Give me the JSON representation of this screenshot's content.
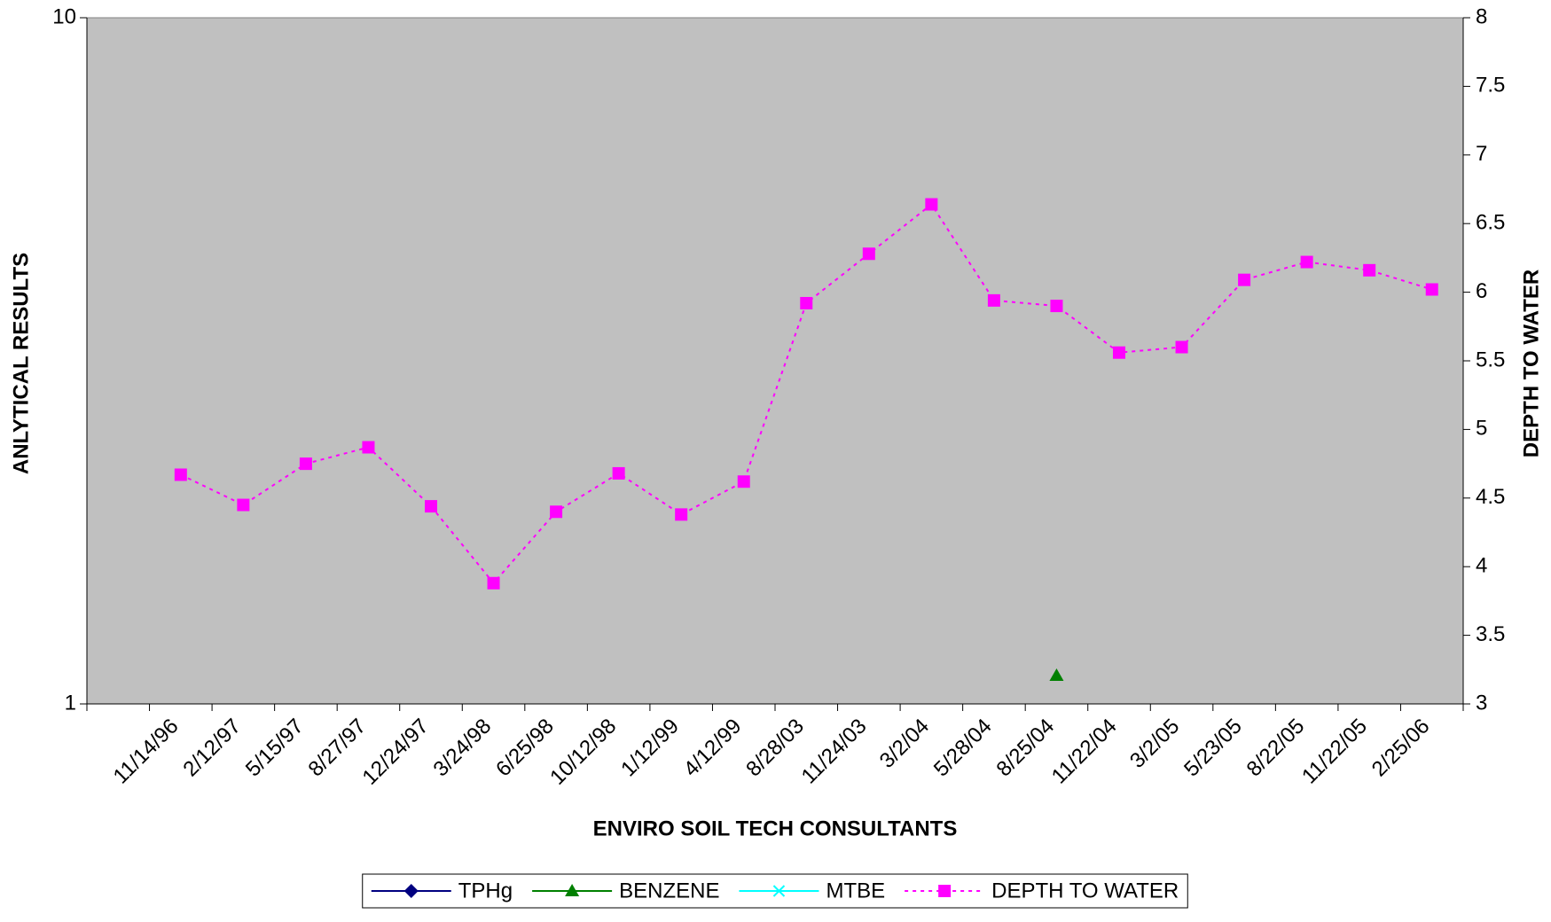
{
  "chart_data": {
    "type": "line",
    "xlabel": "ENVIRO SOIL TECH CONSULTANTS",
    "ylabel": "ANLYTICAL RESULTS",
    "y2label": "DEPTH TO WATER",
    "categories": [
      null,
      "11/14/96",
      "2/12/97",
      "5/15/97",
      "8/27/97",
      "12/24/97",
      "3/24/98",
      "6/25/98",
      "10/12/98",
      "1/12/99",
      "4/12/99",
      "8/28/03",
      "11/24/03",
      "3/2/04",
      "5/28/04",
      "8/25/04",
      "11/22/04",
      "3/2/05",
      "5/23/05",
      "8/22/05",
      "11/22/05",
      "2/25/06"
    ],
    "series": [
      {
        "name": "TPHg",
        "color": "#000080",
        "marker": "diamond",
        "values": [
          null,
          null,
          null,
          null,
          null,
          null,
          null,
          null,
          null,
          null,
          null,
          null,
          null,
          null,
          null,
          null,
          null,
          null,
          null,
          null,
          null,
          null
        ]
      },
      {
        "name": "BENZENE",
        "color": "#008000",
        "marker": "triangle",
        "values": [
          null,
          null,
          null,
          null,
          null,
          null,
          null,
          null,
          null,
          null,
          null,
          null,
          null,
          null,
          null,
          1.1,
          null,
          null,
          null,
          null,
          null,
          null
        ]
      },
      {
        "name": "MTBE",
        "color": "#00ffff",
        "marker": "x",
        "values": [
          null,
          null,
          null,
          null,
          null,
          null,
          null,
          null,
          null,
          null,
          null,
          null,
          null,
          null,
          null,
          null,
          null,
          null,
          null,
          null,
          null,
          null
        ]
      },
      {
        "name": "DEPTH TO WATER",
        "color": "#ff00ff",
        "marker": "square",
        "dashed": true,
        "axis": "y2",
        "values": [
          null,
          4.67,
          4.45,
          4.75,
          4.87,
          4.44,
          3.88,
          4.4,
          4.68,
          4.38,
          4.62,
          5.92,
          6.28,
          6.64,
          5.94,
          5.9,
          5.56,
          5.6,
          6.09,
          6.22,
          6.16,
          6.02
        ]
      }
    ],
    "ylog": true,
    "ylim": [
      1,
      10
    ],
    "yticks": [
      1,
      10
    ],
    "y2lim": [
      3,
      8
    ],
    "y2ticks": [
      3,
      3.5,
      4,
      4.5,
      5,
      5.5,
      6,
      6.5,
      7,
      7.5,
      8
    ],
    "plot_background": "#c0c0c0",
    "legend": "bottom"
  }
}
